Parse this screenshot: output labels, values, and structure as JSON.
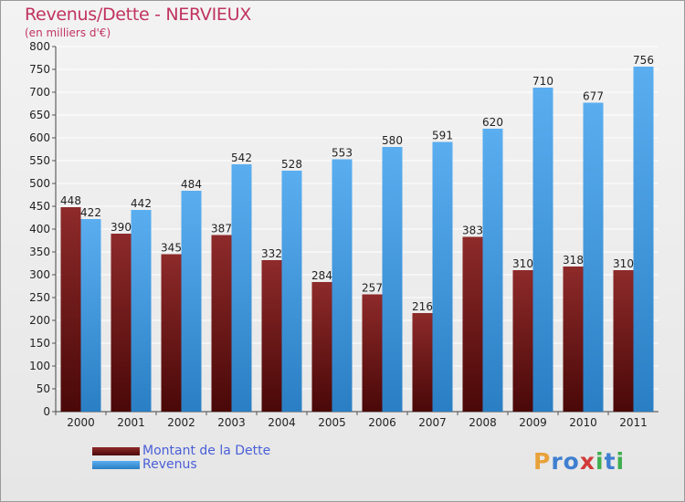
{
  "title": "Revenus/Dette - NERVIEUX",
  "subtitle": "(en milliers d'€)",
  "logo": "Proxiti",
  "colors": {
    "title": "#c0335f",
    "dette": "#7a1a1a",
    "revenus": "#4aa3e6",
    "legend_text": "#4a5fd8"
  },
  "chart_data": {
    "type": "bar",
    "title": "Revenus/Dette - NERVIEUX",
    "subtitle": "(en milliers d'€)",
    "categories": [
      "2000",
      "2001",
      "2002",
      "2003",
      "2004",
      "2005",
      "2006",
      "2007",
      "2008",
      "2009",
      "2010",
      "2011"
    ],
    "series": [
      {
        "name": "Montant de la Dette",
        "values": [
          448,
          390,
          345,
          387,
          332,
          284,
          257,
          216,
          383,
          310,
          318,
          310
        ]
      },
      {
        "name": "Revenus",
        "values": [
          422,
          442,
          484,
          542,
          528,
          553,
          580,
          591,
          620,
          710,
          677,
          756
        ]
      }
    ],
    "ylim": [
      0,
      800
    ],
    "yticks": [
      0,
      50,
      100,
      150,
      200,
      250,
      300,
      350,
      400,
      450,
      500,
      550,
      600,
      650,
      700,
      750,
      800
    ],
    "grid": true,
    "legend": "bottom-left"
  }
}
